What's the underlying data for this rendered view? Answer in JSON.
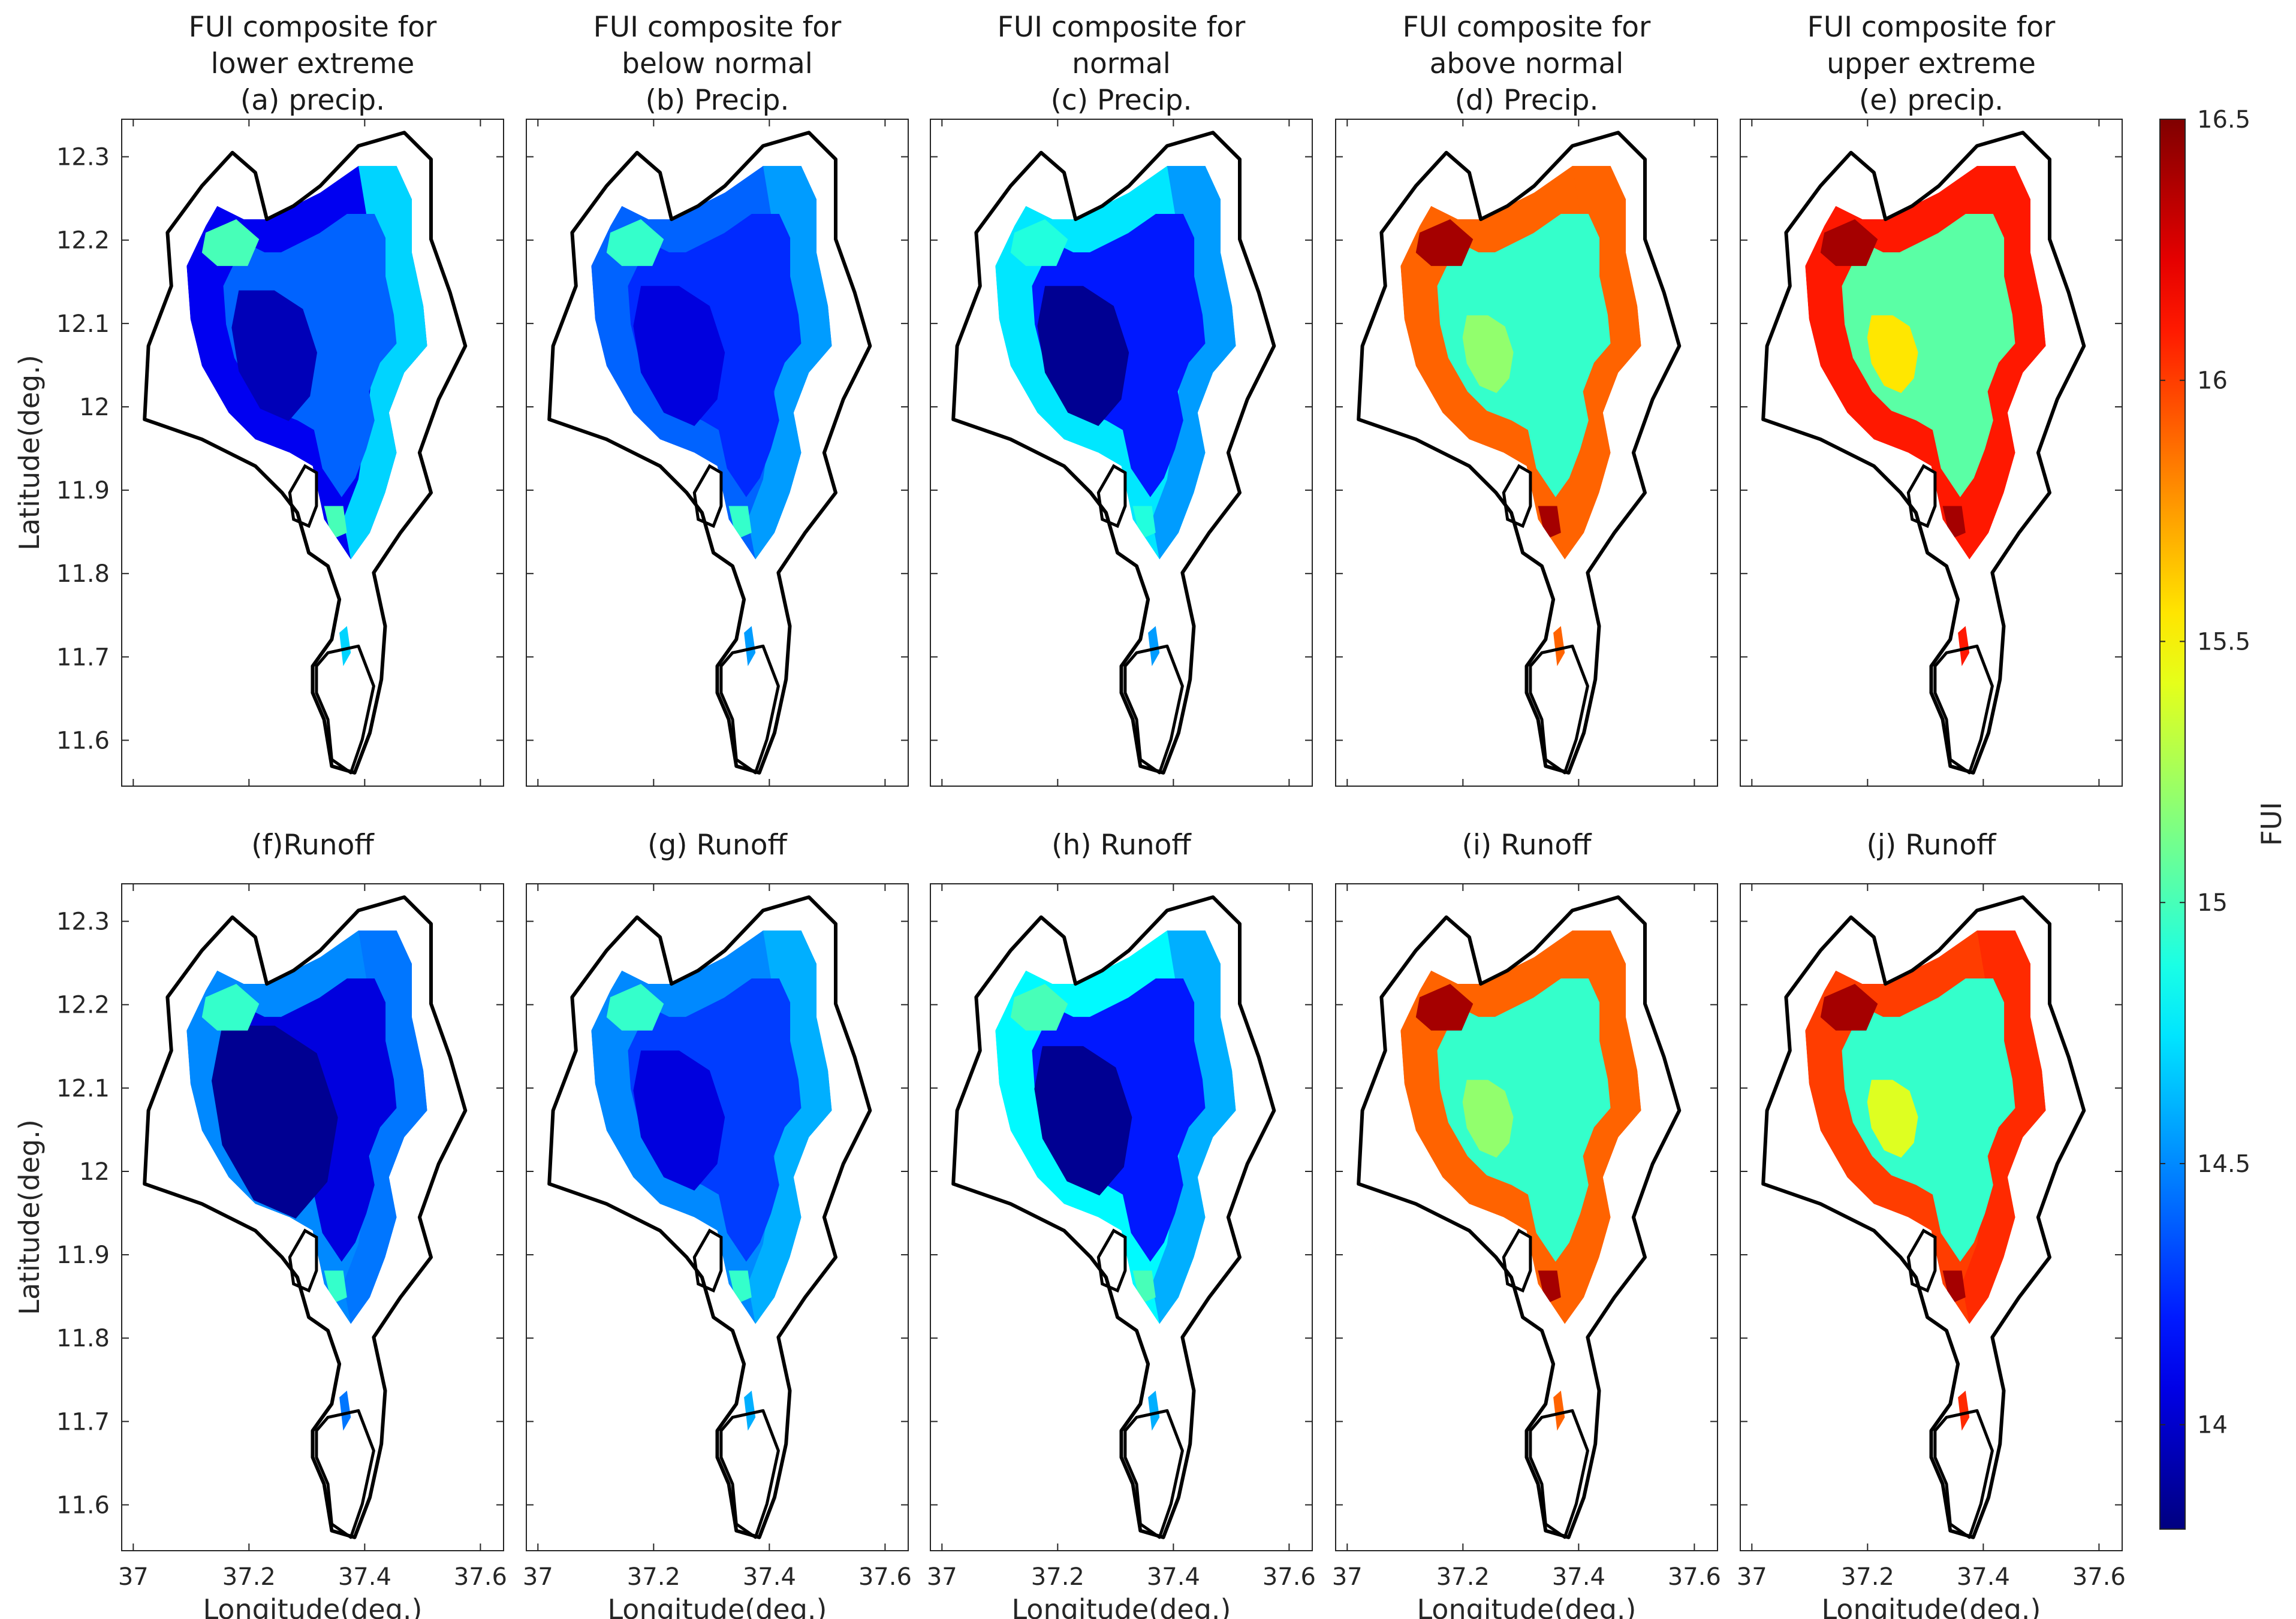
{
  "chart_data": {
    "type": "heatmap",
    "variable": "FUI",
    "x_ticks": [
      37,
      37.2,
      37.4,
      37.6
    ],
    "y_ticks": [
      11.6,
      11.7,
      11.8,
      11.9,
      12,
      12.1,
      12.2,
      12.3
    ],
    "xlim": [
      36.98,
      37.64
    ],
    "ylim": [
      11.545,
      12.345
    ],
    "xlabel": "Longitude(deg.)",
    "ylabel": "Latitude(deg.)",
    "colorbar": {
      "label": "FUI",
      "colormap": "jet",
      "range": [
        13.8,
        16.5
      ],
      "ticks": [
        14,
        14.5,
        15,
        15.5,
        16,
        16.5
      ]
    },
    "panels": [
      {
        "row": 0,
        "title": [
          "FUI composite for",
          "lower extreme",
          "(a) precip."
        ],
        "levels": [
          14.1,
          13.95,
          14.4,
          14.7,
          15.0
        ],
        "core_scale": 0.42
      },
      {
        "row": 0,
        "title": [
          "FUI composite for",
          "below normal",
          "(b) Precip."
        ],
        "levels": [
          14.4,
          14.05,
          14.25,
          14.55,
          14.95
        ],
        "core_scale": 0.45
      },
      {
        "row": 0,
        "title": [
          "FUI composite for",
          "normal",
          "(c) Precip."
        ],
        "levels": [
          14.75,
          13.85,
          14.2,
          14.55,
          14.9
        ],
        "core_scale": 0.45
      },
      {
        "row": 0,
        "title": [
          "FUI composite for",
          "above normal",
          "(d) Precip."
        ],
        "levels": [
          15.9,
          15.2,
          14.95,
          15.9,
          16.4
        ],
        "core_scale": 0.25
      },
      {
        "row": 0,
        "title": [
          "FUI composite for",
          "upper extreme",
          "(e) precip."
        ],
        "levels": [
          16.1,
          15.55,
          15.05,
          16.1,
          16.4
        ],
        "core_scale": 0.25
      },
      {
        "row": 1,
        "title": [
          "(f)Runoff"
        ],
        "levels": [
          14.5,
          13.85,
          14.05,
          14.45,
          14.95
        ],
        "core_scale": 0.62
      },
      {
        "row": 1,
        "title": [
          "(g) Runoff"
        ],
        "levels": [
          14.5,
          14.05,
          14.3,
          14.6,
          14.95
        ],
        "core_scale": 0.45
      },
      {
        "row": 1,
        "title": [
          "(h) Runoff"
        ],
        "levels": [
          14.8,
          13.85,
          14.2,
          14.6,
          15.0
        ],
        "core_scale": 0.48
      },
      {
        "row": 1,
        "title": [
          "(i) Runoff"
        ],
        "levels": [
          15.9,
          15.2,
          14.95,
          15.9,
          16.4
        ],
        "core_scale": 0.25
      },
      {
        "row": 1,
        "title": [
          "(j) Runoff"
        ],
        "levels": [
          16.0,
          15.4,
          14.95,
          16.05,
          16.4
        ],
        "core_scale": 0.25
      }
    ]
  }
}
